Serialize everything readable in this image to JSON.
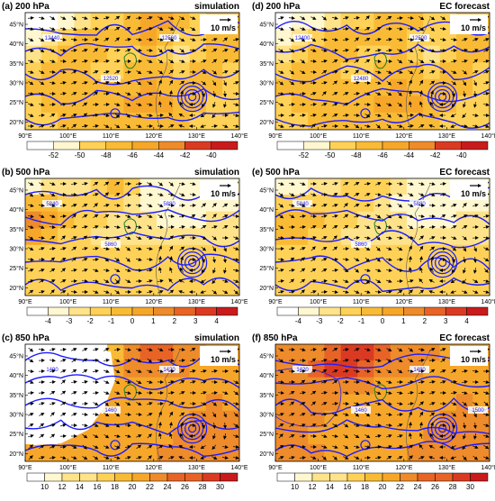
{
  "chart_data": [
    {
      "type": "heatmap",
      "panel": "a",
      "level": "200 hPa",
      "source": "simulation",
      "title": "(a)  200 hPa",
      "source_label": "simulation",
      "xticks": [
        "90°E",
        "100°E",
        "110°E",
        "120°E",
        "130°E",
        "140°E"
      ],
      "yticks": [
        "20°N",
        "25°N",
        "30°N",
        "35°N",
        "40°N",
        "45°N"
      ],
      "xlim": [
        90,
        140
      ],
      "ylim": [
        18,
        48
      ],
      "ref_vector": "10 m/s",
      "contour_labels": [
        "12440",
        "12520",
        "12560"
      ],
      "colorbar": {
        "values": [
          "-52",
          "-50",
          "-48",
          "-46",
          "-44",
          "-42",
          "-40"
        ]
      }
    },
    {
      "type": "heatmap",
      "panel": "d",
      "level": "200 hPa",
      "source": "EC forecast",
      "title": "(d)  200 hPa",
      "source_label": "EC forecast",
      "xticks": [
        "90°E",
        "100°E",
        "110°E",
        "120°E",
        "130°E",
        "140°E"
      ],
      "yticks": [
        "20°N",
        "25°N",
        "30°N",
        "35°N",
        "40°N",
        "45°N"
      ],
      "xlim": [
        90,
        140
      ],
      "ylim": [
        18,
        48
      ],
      "ref_vector": "10 m/s",
      "contour_labels": [
        "12400",
        "12480",
        "12500"
      ],
      "colorbar": {
        "values": [
          "-52",
          "-50",
          "-48",
          "-46",
          "-44",
          "-42",
          "-40"
        ]
      }
    },
    {
      "type": "heatmap",
      "panel": "b",
      "level": "500 hPa",
      "source": "simulation",
      "title": "(b)  500 hPa",
      "source_label": "simulation",
      "xticks": [
        "90°E",
        "100°E",
        "110°E",
        "120°E",
        "130°E",
        "140°E"
      ],
      "yticks": [
        "20°N",
        "25°N",
        "30°N",
        "35°N",
        "40°N",
        "45°N"
      ],
      "xlim": [
        90,
        140
      ],
      "ylim": [
        18,
        48
      ],
      "ref_vector": "10 m/s",
      "contour_labels": [
        "5840",
        "5860",
        "5880"
      ],
      "colorbar": {
        "values": [
          "-4",
          "-3",
          "-2",
          "-1",
          "0",
          "1",
          "2",
          "3",
          "4"
        ]
      }
    },
    {
      "type": "heatmap",
      "panel": "e",
      "level": "500 hPa",
      "source": "EC forecast",
      "title": "(e)  500 hPa",
      "source_label": "EC forecast",
      "xticks": [
        "90°E",
        "100°E",
        "110°E",
        "120°E",
        "130°E",
        "140°E"
      ],
      "yticks": [
        "20°N",
        "25°N",
        "30°N",
        "35°N",
        "40°N",
        "45°N"
      ],
      "xlim": [
        90,
        140
      ],
      "ylim": [
        18,
        48
      ],
      "ref_vector": "10 m/s",
      "contour_labels": [
        "5840",
        "5860",
        "5880"
      ],
      "colorbar": {
        "values": [
          "-4",
          "-3",
          "-2",
          "-1",
          "0",
          "1",
          "2",
          "3",
          "4"
        ]
      }
    },
    {
      "type": "heatmap",
      "panel": "c",
      "level": "850 hPa",
      "source": "simulation",
      "title": "(c)  850 hPa",
      "source_label": "simulation",
      "xticks": [
        "90°E",
        "100°E",
        "110°E",
        "120°E",
        "130°E",
        "140°E"
      ],
      "yticks": [
        "20°N",
        "25°N",
        "30°N",
        "35°N",
        "40°N",
        "45°N"
      ],
      "xlim": [
        90,
        140
      ],
      "ylim": [
        18,
        48
      ],
      "ref_vector": "10 m/s",
      "contour_labels": [
        "1490",
        "1460",
        "1420"
      ],
      "colorbar": {
        "values": [
          "10",
          "12",
          "14",
          "16",
          "18",
          "20",
          "22",
          "24",
          "26",
          "28",
          "30"
        ]
      }
    },
    {
      "type": "heatmap",
      "panel": "f",
      "level": "850 hPa",
      "source": "EC forecast",
      "title": "(f)  850 hPa",
      "source_label": "EC forecast",
      "xticks": [
        "90°E",
        "100°E",
        "110°E",
        "120°E",
        "130°E",
        "140°E"
      ],
      "yticks": [
        "20°N",
        "25°N",
        "30°N",
        "35°N",
        "40°N",
        "45°N"
      ],
      "xlim": [
        90,
        140
      ],
      "ylim": [
        18,
        48
      ],
      "ref_vector": "10 m/s",
      "contour_labels": [
        "1420",
        "1460",
        "1480",
        "1500"
      ],
      "colorbar": {
        "values": [
          "10",
          "12",
          "14",
          "16",
          "18",
          "20",
          "22",
          "24",
          "26",
          "28",
          "30"
        ]
      }
    }
  ],
  "colors": {
    "temp_scale": [
      "#ffffff",
      "#fff7cf",
      "#ffe38a",
      "#ffd257",
      "#f9bb35",
      "#f6a72a",
      "#ee8b2a",
      "#e76426",
      "#db3a22",
      "#c91b1b"
    ],
    "contour": "#1c1cff",
    "coast": "#1f7a1f",
    "vector": "#000000",
    "axis": "#000000"
  }
}
